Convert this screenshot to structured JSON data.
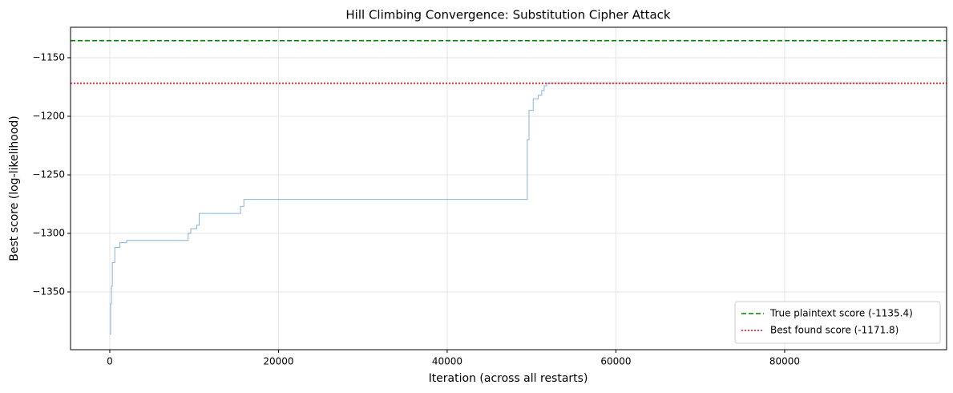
{
  "chart_data": {
    "type": "line",
    "title": "Hill Climbing Convergence: Substitution Cipher Attack",
    "x_label": "Iteration (across all restarts)",
    "y_label": "Best score (log-likelihood)",
    "xlim": [
      -4650,
      99200
    ],
    "ylim": [
      -1399.3,
      -1124
    ],
    "xticks": [
      0,
      20000,
      40000,
      60000,
      80000
    ],
    "yticks": [
      {
        "value": -1150,
        "label": "−1150"
      },
      {
        "value": -1200,
        "label": "−1200"
      },
      {
        "value": -1250,
        "label": "−1250"
      },
      {
        "value": -1300,
        "label": "−1300"
      },
      {
        "value": -1350,
        "label": "−1350"
      }
    ],
    "grid": true,
    "legend_position": "lower-right",
    "series": [
      {
        "color": "#1f77b4",
        "x": [
          0,
          100,
          100,
          200,
          200,
          300,
          300,
          600,
          600,
          1200,
          1200,
          2000,
          2000,
          9300,
          9300,
          9600,
          9600,
          10300,
          10300,
          10600,
          10600,
          15500,
          15500,
          15900,
          15900,
          49500,
          49500,
          49700,
          49700,
          50200,
          50200,
          50800,
          50800,
          51200,
          51200,
          51500,
          51500,
          51800,
          51800,
          93000
        ],
        "values": [
          -1386,
          -1386,
          -1360,
          -1360,
          -1345,
          -1345,
          -1325,
          -1325,
          -1312,
          -1312,
          -1308,
          -1308,
          -1306,
          -1306,
          -1300,
          -1300,
          -1296,
          -1296,
          -1293,
          -1293,
          -1283,
          -1283,
          -1277,
          -1277,
          -1271,
          -1271,
          -1220,
          -1220,
          -1195,
          -1195,
          -1185,
          -1185,
          -1182,
          -1182,
          -1178,
          -1178,
          -1174,
          -1174,
          -1171.8,
          -1171.8
        ]
      }
    ],
    "reference_lines": [
      {
        "name": "True plaintext score (-1135.4)",
        "value": -1135.4,
        "color": "#008000",
        "style": "dashed"
      },
      {
        "name": "Best found score (-1171.8)",
        "value": -1171.8,
        "color": "#ff0000",
        "style": "dotted"
      }
    ]
  }
}
